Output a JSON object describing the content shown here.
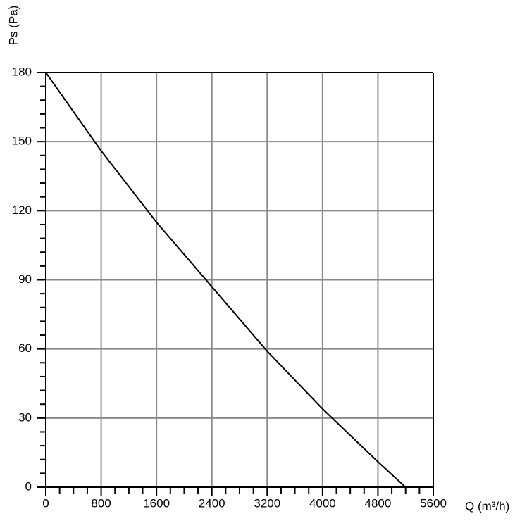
{
  "chart_data": {
    "type": "line",
    "x_label": "Q (m³/h)",
    "y_label": "Ps (Pa)",
    "x": [
      0,
      800,
      1600,
      2400,
      3200,
      4000,
      4800,
      5200
    ],
    "series": [
      {
        "color": "#000000",
        "values": [
          180,
          146,
          115,
          87,
          59,
          34,
          11,
          0
        ]
      }
    ],
    "xlim": [
      0,
      5600
    ],
    "xticks": [
      0,
      800,
      1600,
      2400,
      3200,
      4000,
      4800,
      5600
    ],
    "ylim": [
      0,
      180
    ],
    "yticks": [
      0,
      30,
      60,
      90,
      120,
      150,
      180
    ],
    "grid": true
  }
}
